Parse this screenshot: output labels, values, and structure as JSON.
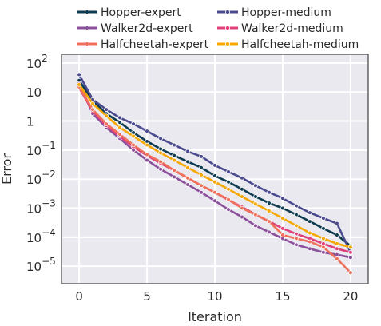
{
  "chart_data": {
    "type": "line",
    "xlabel": "Iteration",
    "ylabel": "Error",
    "yscale": "log",
    "xlim": [
      -1.3,
      21.3
    ],
    "ylim": [
      2.5e-06,
      200
    ],
    "xticks": [
      0,
      5,
      10,
      15,
      20
    ],
    "xtick_labels": [
      "0",
      "5",
      "10",
      "15",
      "20"
    ],
    "yticks": [
      1e-05,
      0.0001,
      0.001,
      0.01,
      0.1,
      1,
      10,
      100
    ],
    "ytick_labels": [
      {
        "base": "10",
        "exp": "−5"
      },
      {
        "base": "10",
        "exp": "−4"
      },
      {
        "base": "10",
        "exp": "−3"
      },
      {
        "base": "10",
        "exp": "−2"
      },
      {
        "base": "10",
        "exp": "−1"
      },
      {
        "base": "1",
        "exp": ""
      },
      {
        "base": "10",
        "exp": ""
      },
      {
        "base": "10",
        "exp": "2"
      }
    ],
    "grid": true,
    "legend_position": "top",
    "x": [
      0,
      1,
      2,
      3,
      4,
      5,
      6,
      7,
      8,
      9,
      10,
      11,
      12,
      13,
      14,
      15,
      16,
      17,
      18,
      19,
      20
    ],
    "series": [
      {
        "name": "Hopper-expert",
        "color": "#0d3b4f",
        "values": [
          25,
          5,
          1.8,
          0.9,
          0.4,
          0.2,
          0.11,
          0.065,
          0.04,
          0.025,
          0.013,
          0.008,
          0.0045,
          0.0025,
          0.0015,
          0.001,
          0.0006,
          0.00035,
          0.0002,
          0.00012,
          5e-05
        ]
      },
      {
        "name": "Hopper-medium",
        "color": "#4b4a8f",
        "values": [
          40,
          5.5,
          2.5,
          1.3,
          0.8,
          0.45,
          0.25,
          0.15,
          0.09,
          0.06,
          0.03,
          0.018,
          0.011,
          0.006,
          0.0035,
          0.0022,
          0.0012,
          0.0007,
          0.00045,
          0.0003,
          3e-05
        ]
      },
      {
        "name": "Walker2d-expert",
        "color": "#8c4f9b",
        "values": [
          20,
          1.8,
          0.6,
          0.25,
          0.1,
          0.045,
          0.022,
          0.012,
          0.0065,
          0.0035,
          0.0018,
          0.0009,
          0.0005,
          0.00025,
          0.00015,
          9e-05,
          5.5e-05,
          4e-05,
          3e-05,
          2.5e-05,
          2e-05
        ]
      },
      {
        "name": "Walker2d-medium",
        "color": "#e0407a",
        "values": [
          14,
          2.2,
          0.7,
          0.3,
          0.13,
          0.065,
          0.035,
          0.02,
          0.011,
          0.006,
          0.0035,
          0.0019,
          0.0011,
          0.0006,
          0.00035,
          0.0002,
          0.00013,
          9e-05,
          6e-05,
          4e-05,
          3e-05
        ]
      },
      {
        "name": "Halfcheetah-expert",
        "color": "#f0705a",
        "values": [
          15,
          2.5,
          0.8,
          0.35,
          0.15,
          0.07,
          0.04,
          0.02,
          0.011,
          0.006,
          0.0035,
          0.002,
          0.001,
          0.0006,
          0.00035,
          0.00012,
          9e-05,
          7e-05,
          4.5e-05,
          1.8e-05,
          6e-06
        ]
      },
      {
        "name": "Halfcheetah-medium",
        "color": "#f6a800",
        "values": [
          18,
          4,
          1.5,
          0.6,
          0.3,
          0.15,
          0.08,
          0.045,
          0.025,
          0.014,
          0.008,
          0.0045,
          0.0025,
          0.0014,
          0.0008,
          0.00045,
          0.00025,
          0.00014,
          9e-05,
          6e-05,
          4.5e-05
        ]
      }
    ]
  }
}
